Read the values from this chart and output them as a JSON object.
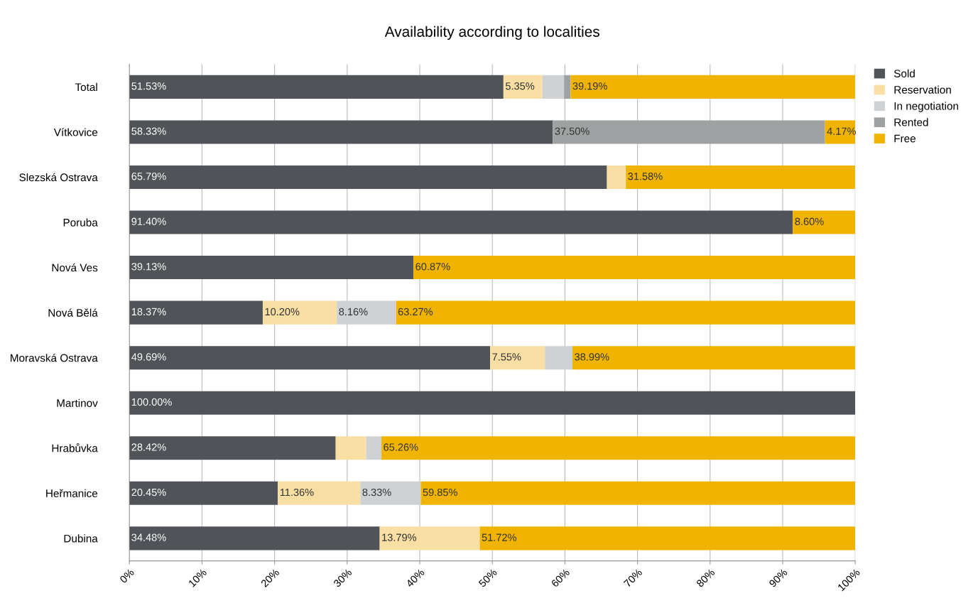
{
  "chart_data": {
    "type": "bar",
    "orientation": "horizontal",
    "stacked": true,
    "title": "Availability according to localities",
    "categories": [
      "Total",
      "Vítkovice",
      "Slezská Ostrava",
      "Poruba",
      "Nová Ves",
      "Nová Bělá",
      "Moravská Ostrava",
      "Martinov",
      "Hrabůvka",
      "Heřmanice",
      "Dubina"
    ],
    "series": [
      {
        "name": "Sold",
        "color": "#505458",
        "values": [
          51.53,
          58.33,
          65.79,
          91.4,
          39.13,
          18.37,
          49.69,
          100.0,
          28.42,
          20.45,
          34.48
        ],
        "value_labels": [
          "51.53%",
          "58.33%",
          "65.79%",
          "91.40%",
          "39.13%",
          "18.37%",
          "49.69%",
          "100.00%",
          "28.42%",
          "20.45%",
          "34.48%"
        ]
      },
      {
        "name": "Reservation",
        "color": "#f9dfa4",
        "values": [
          5.35,
          0,
          2.6,
          0,
          0,
          10.2,
          7.55,
          0,
          4.2,
          11.36,
          13.79
        ],
        "value_labels": [
          "5.35%",
          null,
          null,
          null,
          null,
          "10.20%",
          "7.55%",
          null,
          null,
          "11.36%",
          "13.79%"
        ]
      },
      {
        "name": "In negotiation",
        "color": "#cfd2d4",
        "values": [
          3.0,
          0,
          0,
          0,
          0,
          8.16,
          3.8,
          0,
          2.1,
          8.33,
          0
        ],
        "value_labels": [
          null,
          null,
          null,
          null,
          null,
          "8.16%",
          null,
          null,
          null,
          "8.33%",
          null
        ]
      },
      {
        "name": "Rented",
        "color": "#9ea2a2",
        "values": [
          0.9,
          37.5,
          0,
          0,
          0,
          0,
          0,
          0,
          0,
          0,
          0
        ],
        "value_labels": [
          null,
          "37.50%",
          null,
          null,
          null,
          null,
          null,
          null,
          null,
          null,
          null
        ]
      },
      {
        "name": "Free",
        "color": "#f0b400",
        "values": [
          39.19,
          4.17,
          31.58,
          8.6,
          60.87,
          63.27,
          38.99,
          0,
          65.26,
          59.85,
          51.72
        ],
        "value_labels": [
          "39.19%",
          "4.17%",
          "31.58%",
          "8.60%",
          "60.87%",
          "63.27%",
          "38.99%",
          null,
          "65.26%",
          "59.85%",
          "51.72%"
        ]
      }
    ],
    "xlim": [
      0,
      100
    ],
    "xticks": [
      {
        "value": 0,
        "label": "0%"
      },
      {
        "value": 10,
        "label": "10%"
      },
      {
        "value": 20,
        "label": "20%"
      },
      {
        "value": 30,
        "label": "30%"
      },
      {
        "value": 40,
        "label": "40%"
      },
      {
        "value": 50,
        "label": "50%"
      },
      {
        "value": 60,
        "label": "60%"
      },
      {
        "value": 70,
        "label": "70%"
      },
      {
        "value": 80,
        "label": "80%"
      },
      {
        "value": 90,
        "label": "90%"
      },
      {
        "value": 100,
        "label": "100%"
      }
    ],
    "grid": "x",
    "legend": "top right"
  }
}
